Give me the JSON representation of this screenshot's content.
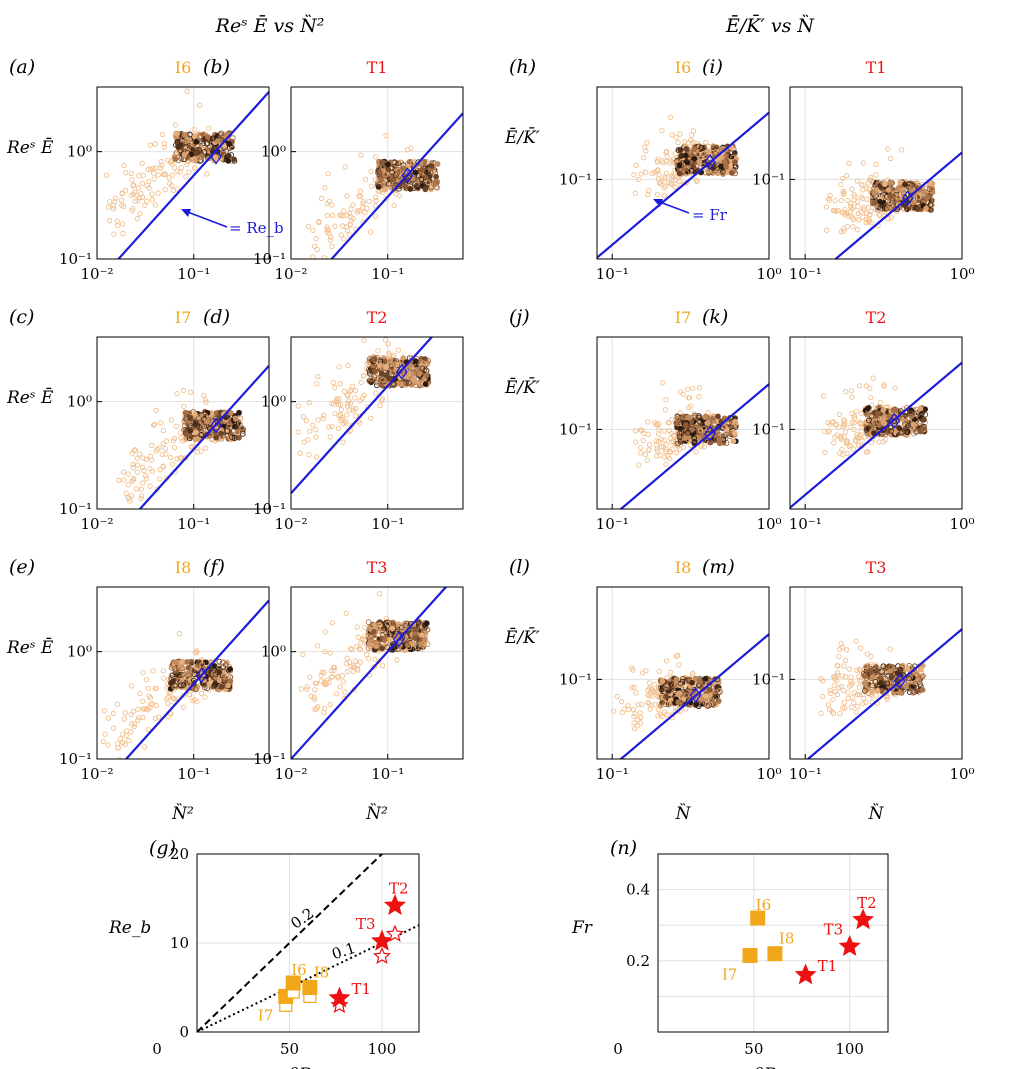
{
  "figure": {
    "header_left": "Reˢ Ē vs N̏²",
    "header_right": "Ē/K̄′ vs N̏",
    "ylabel_left": "Reˢ Ē",
    "ylabel_right": "Ē/K̄′",
    "xlabel_left": "N̏²",
    "xlabel_right": "N̏",
    "annotation_left": "= Re_b",
    "annotation_right": "= Fr"
  },
  "colors": {
    "orange_run": "#f2a71b",
    "red_run": "#ee1111",
    "fit_line": "#1c1cdc",
    "open_star": "#ee1111",
    "ann_dash": "#000000"
  },
  "chart_data": [
    {
      "id": "a",
      "label": "(a)",
      "title": "I6",
      "title_color": "orange",
      "type": "scatter",
      "xscale": "log",
      "yscale": "log",
      "xlim": [
        0.01,
        0.6
      ],
      "ylim": [
        0.1,
        4
      ],
      "xticks": [
        "10⁻²",
        "10⁻¹"
      ],
      "yticks": [
        "10⁻¹",
        "10⁰"
      ],
      "line_slope_value": 6.0,
      "diamond": [
        0.17,
        0.9
      ],
      "cloud_center": [
        0.12,
        1.1
      ]
    },
    {
      "id": "b",
      "label": "(b)",
      "title": "T1",
      "title_color": "red",
      "type": "scatter",
      "xscale": "log",
      "yscale": "log",
      "xlim": [
        0.01,
        0.6
      ],
      "ylim": [
        0.1,
        4
      ],
      "xticks": [
        "10⁻²",
        "10⁻¹"
      ],
      "yticks": [
        "10⁻¹",
        "10⁰"
      ],
      "line_slope_value": 3.8,
      "diamond": [
        0.16,
        0.6
      ],
      "cloud_center": [
        0.15,
        0.6
      ]
    },
    {
      "id": "c",
      "label": "(c)",
      "title": "I7",
      "title_color": "orange",
      "type": "scatter",
      "xscale": "log",
      "yscale": "log",
      "xlim": [
        0.01,
        0.6
      ],
      "ylim": [
        0.1,
        4
      ],
      "xticks": [
        "10⁻²",
        "10⁻¹"
      ],
      "yticks": [
        "10⁻¹",
        "10⁰"
      ],
      "line_slope_value": 3.6,
      "diamond": [
        0.17,
        0.6
      ],
      "cloud_center": [
        0.15,
        0.6
      ]
    },
    {
      "id": "d",
      "label": "(d)",
      "title": "T2",
      "title_color": "red",
      "type": "scatter",
      "xscale": "log",
      "yscale": "log",
      "xlim": [
        0.01,
        0.6
      ],
      "ylim": [
        0.1,
        4
      ],
      "xticks": [
        "10⁻²",
        "10⁻¹"
      ],
      "yticks": [
        "10⁻¹",
        "10⁰"
      ],
      "line_slope_value": 14.0,
      "diamond": [
        0.14,
        1.9
      ],
      "cloud_center": [
        0.12,
        1.9
      ]
    },
    {
      "id": "e",
      "label": "(e)",
      "title": "I8",
      "title_color": "orange",
      "type": "scatter",
      "xscale": "log",
      "yscale": "log",
      "xlim": [
        0.01,
        0.6
      ],
      "ylim": [
        0.1,
        4
      ],
      "xticks": [
        "10⁻²",
        "10⁻¹"
      ],
      "yticks": [
        "10⁻¹",
        "10⁰"
      ],
      "line_slope_value": 5.0,
      "diamond": [
        0.12,
        0.6
      ],
      "cloud_center": [
        0.11,
        0.6
      ]
    },
    {
      "id": "f",
      "label": "(f)",
      "title": "T3",
      "title_color": "red",
      "type": "scatter",
      "xscale": "log",
      "yscale": "log",
      "xlim": [
        0.01,
        0.6
      ],
      "ylim": [
        0.1,
        4
      ],
      "xticks": [
        "10⁻²",
        "10⁻¹"
      ],
      "yticks": [
        "10⁻¹",
        "10⁰"
      ],
      "line_slope_value": 10.0,
      "diamond": [
        0.13,
        1.3
      ],
      "cloud_center": [
        0.12,
        1.4
      ]
    },
    {
      "id": "h",
      "label": "(h)",
      "title": "I6",
      "title_color": "orange",
      "type": "scatter",
      "xscale": "log",
      "yscale": "log",
      "xlim": [
        0.08,
        1
      ],
      "ylim": [
        0.025,
        0.5
      ],
      "xticks": [
        "10⁻¹",
        "10⁰"
      ],
      "yticks": [
        "10⁻¹"
      ],
      "line_slope_value": 0.32,
      "diamond": [
        0.42,
        0.135
      ],
      "cloud_center": [
        0.38,
        0.14
      ]
    },
    {
      "id": "i",
      "label": "(i)",
      "title": "T1",
      "title_color": "red",
      "type": "scatter",
      "xscale": "log",
      "yscale": "log",
      "xlim": [
        0.08,
        1
      ],
      "ylim": [
        0.025,
        0.5
      ],
      "xticks": [
        "10⁻¹",
        "10⁰"
      ],
      "yticks": [
        "10⁻¹"
      ],
      "line_slope_value": 0.16,
      "diamond": [
        0.45,
        0.072
      ],
      "cloud_center": [
        0.4,
        0.075
      ]
    },
    {
      "id": "j",
      "label": "(j)",
      "title": "I7",
      "title_color": "orange",
      "type": "scatter",
      "xscale": "log",
      "yscale": "log",
      "xlim": [
        0.08,
        1
      ],
      "ylim": [
        0.025,
        0.5
      ],
      "xticks": [
        "10⁻¹",
        "10⁰"
      ],
      "yticks": [
        "10⁻¹"
      ],
      "line_slope_value": 0.22,
      "diamond": [
        0.42,
        0.093
      ],
      "cloud_center": [
        0.38,
        0.1
      ]
    },
    {
      "id": "k",
      "label": "(k)",
      "title": "T2",
      "title_color": "red",
      "type": "scatter",
      "xscale": "log",
      "yscale": "log",
      "xlim": [
        0.08,
        1
      ],
      "ylim": [
        0.025,
        0.5
      ],
      "xticks": [
        "10⁻¹",
        "10⁰"
      ],
      "yticks": [
        "10⁻¹"
      ],
      "line_slope_value": 0.32,
      "diamond": [
        0.37,
        0.116
      ],
      "cloud_center": [
        0.36,
        0.115
      ]
    },
    {
      "id": "l",
      "label": "(l)",
      "title": "I8",
      "title_color": "orange",
      "type": "scatter",
      "xscale": "log",
      "yscale": "log",
      "xlim": [
        0.08,
        1
      ],
      "ylim": [
        0.025,
        0.5
      ],
      "xticks": [
        "10⁻¹",
        "10⁰"
      ],
      "yticks": [
        "10⁻¹"
      ],
      "line_slope_value": 0.22,
      "diamond": [
        0.34,
        0.076
      ],
      "cloud_center": [
        0.3,
        0.08
      ]
    },
    {
      "id": "m",
      "label": "(m)",
      "title": "T3",
      "title_color": "red",
      "type": "scatter",
      "xscale": "log",
      "yscale": "log",
      "xlim": [
        0.08,
        1
      ],
      "ylim": [
        0.025,
        0.5
      ],
      "xticks": [
        "10⁻¹",
        "10⁰"
      ],
      "yticks": [
        "10⁻¹"
      ],
      "line_slope_value": 0.24,
      "diamond": [
        0.4,
        0.097
      ],
      "cloud_center": [
        0.35,
        0.1
      ]
    },
    {
      "id": "g",
      "label": "(g)",
      "type": "scatter",
      "xlabel": "θReˢ",
      "ylabel": "Re_b",
      "xlim": [
        0,
        120
      ],
      "ylim": [
        0,
        20
      ],
      "xticks": [
        "0",
        "50",
        "100"
      ],
      "yticks": [
        "0",
        "10",
        "20"
      ],
      "ref_lines": [
        {
          "label": "0.2",
          "slope": 0.2
        },
        {
          "label": "0.1",
          "slope": 0.1
        }
      ],
      "points": [
        {
          "name": "I7",
          "x": 48,
          "y": 4.0,
          "open_y": 3.0,
          "marker": "square",
          "color": "orange"
        },
        {
          "name": "I6",
          "x": 52,
          "y": 5.5,
          "open_y": 4.5,
          "marker": "square",
          "color": "orange"
        },
        {
          "name": "I8",
          "x": 61,
          "y": 5.0,
          "open_y": 4.0,
          "marker": "square",
          "color": "orange"
        },
        {
          "name": "T1",
          "x": 77,
          "y": 3.8,
          "open_y": 3.0,
          "marker": "star",
          "color": "red"
        },
        {
          "name": "T3",
          "x": 100,
          "y": 10.2,
          "open_y": 8.5,
          "marker": "star",
          "color": "red"
        },
        {
          "name": "T2",
          "x": 107,
          "y": 14.2,
          "open_y": 11.0,
          "marker": "star",
          "color": "red"
        }
      ]
    },
    {
      "id": "n",
      "label": "(n)",
      "type": "scatter",
      "xlabel": "θReˢ",
      "ylabel": "Fr",
      "xlim": [
        0,
        120
      ],
      "ylim": [
        0,
        0.5
      ],
      "xticks": [
        "0",
        "50",
        "100"
      ],
      "yticks": [
        "0.2",
        "0.4"
      ],
      "points": [
        {
          "name": "I7",
          "x": 48,
          "y": 0.215,
          "marker": "square",
          "color": "orange"
        },
        {
          "name": "I6",
          "x": 52,
          "y": 0.32,
          "marker": "square",
          "color": "orange"
        },
        {
          "name": "I8",
          "x": 61,
          "y": 0.22,
          "marker": "square",
          "color": "orange"
        },
        {
          "name": "T1",
          "x": 77,
          "y": 0.16,
          "marker": "star",
          "color": "red"
        },
        {
          "name": "T3",
          "x": 100,
          "y": 0.24,
          "marker": "star",
          "color": "red"
        },
        {
          "name": "T2",
          "x": 107,
          "y": 0.315,
          "marker": "star",
          "color": "red"
        }
      ]
    }
  ]
}
